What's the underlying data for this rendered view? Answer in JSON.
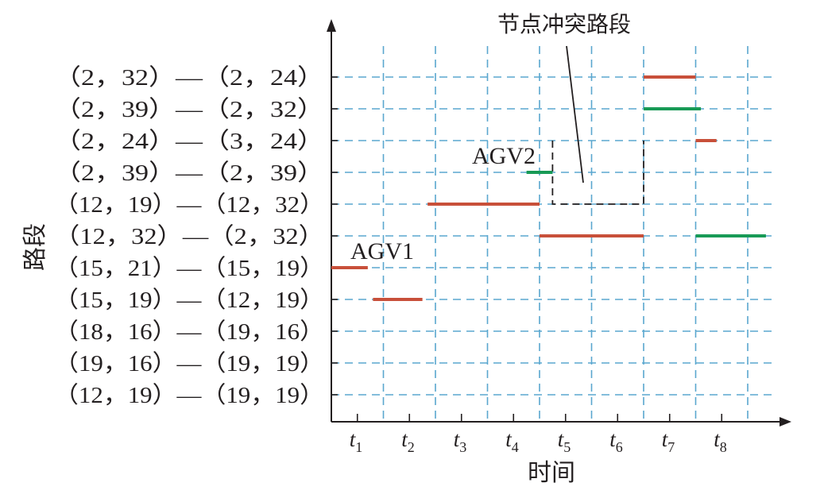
{
  "chart_data": {
    "type": "gantt",
    "xlabel": "时间",
    "ylabel": "路段",
    "x_ticks": [
      {
        "base": "t",
        "sub": "1"
      },
      {
        "base": "t",
        "sub": "2"
      },
      {
        "base": "t",
        "sub": "3"
      },
      {
        "base": "t",
        "sub": "4"
      },
      {
        "base": "t",
        "sub": "5"
      },
      {
        "base": "t",
        "sub": "6"
      },
      {
        "base": "t",
        "sub": "7"
      },
      {
        "base": "t",
        "sub": "8"
      }
    ],
    "categories": [
      "（2，32）—（2，24）",
      "（2，39）—（2，32）",
      "（2，24）—（3，24）",
      "（2，39）—（2，39）",
      "（12，19）—（12，32）",
      "（12，32）—（2，32）",
      "（15，21）—（15，19）",
      "（15，19）—（12，19）",
      "（18，16）—（19，16）",
      "（19，16）—（19，19）",
      "（12，19）—（19，19）"
    ],
    "colors": {
      "AGV1": "#c8503a",
      "AGV2": "#189a56",
      "grid": "#5aa7cf",
      "axis": "#231f20"
    },
    "series": [
      {
        "name": "AGV1",
        "segments": [
          {
            "row": 6,
            "start": 0.0,
            "end": 0.7
          },
          {
            "row": 7,
            "start": 0.8,
            "end": 1.75
          },
          {
            "row": 4,
            "start": 1.85,
            "end": 4.0
          },
          {
            "row": 5,
            "start": 4.0,
            "end": 6.0
          },
          {
            "row": 0,
            "start": 6.0,
            "end": 7.0
          },
          {
            "row": 2,
            "start": 7.0,
            "end": 7.4
          }
        ]
      },
      {
        "name": "AGV2",
        "segments": [
          {
            "row": 3,
            "start": 3.75,
            "end": 4.25
          },
          {
            "row": 1,
            "start": 6.0,
            "end": 7.1
          },
          {
            "row": 5,
            "start": 7.0,
            "end": 8.35
          }
        ]
      }
    ],
    "conflict_box": {
      "row_top": 2,
      "row_bottom": 4,
      "start": 4.25,
      "end": 6.0
    },
    "annotations": {
      "agv1": "AGV1",
      "agv2": "AGV2",
      "conflict": "节点冲突路段"
    }
  }
}
